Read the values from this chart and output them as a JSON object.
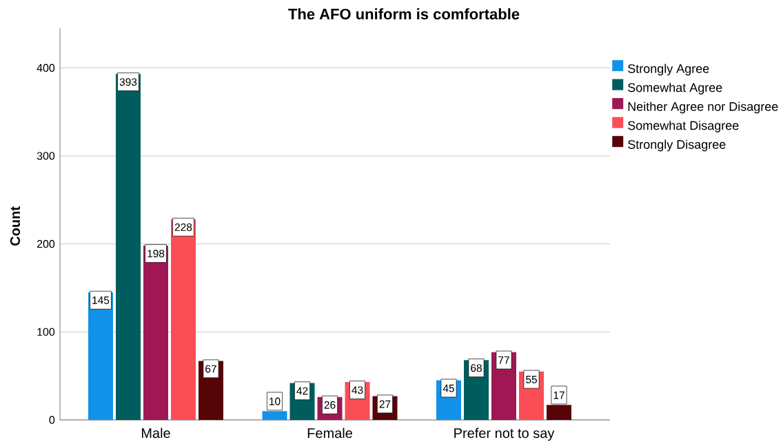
{
  "chart_data": {
    "type": "bar",
    "title": "The AFO uniform is comfortable",
    "ylabel": "Count",
    "categories": [
      "Male",
      "Female",
      "Prefer not to say"
    ],
    "series": [
      {
        "name": "Strongly Agree",
        "color": "#1192e8",
        "values": [
          145,
          10,
          45
        ]
      },
      {
        "name": "Somewhat Agree",
        "color": "#005d5d",
        "values": [
          393,
          42,
          68
        ]
      },
      {
        "name": "Neither Agree nor Disagree",
        "color": "#9f1853",
        "values": [
          198,
          26,
          77
        ]
      },
      {
        "name": "Somewhat Disagree",
        "color": "#fa4d56",
        "values": [
          228,
          43,
          55
        ]
      },
      {
        "name": "Strongly Disagree",
        "color": "#570408",
        "values": [
          67,
          27,
          17
        ]
      }
    ],
    "ylim": [
      0,
      445
    ],
    "yticks": [
      0,
      100,
      200,
      300,
      400
    ],
    "grid": "y",
    "legend": "top right",
    "data_labels": true
  }
}
